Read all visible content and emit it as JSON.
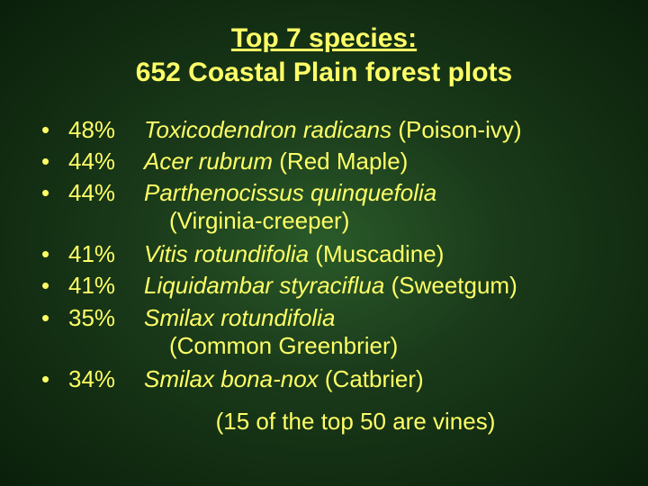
{
  "colors": {
    "text": "#ffff66",
    "bg_inner": "#2a5a2a",
    "bg_mid": "#1a3a1a",
    "bg_outer": "#0a1f0a"
  },
  "typography": {
    "font_family": "Comic Sans MS",
    "title_fontsize": 30,
    "body_fontsize": 26,
    "title_weight": "bold"
  },
  "title": {
    "line1": "Top 7 species:",
    "line2": "652 Coastal Plain forest plots"
  },
  "items": [
    {
      "bullet": "•",
      "pct": "48%",
      "sci": "Toxicodendron radicans",
      "common": " (Poison-ivy)"
    },
    {
      "bullet": "•",
      "pct": "44%",
      "sci": "Acer rubrum",
      "common": " (Red Maple)"
    },
    {
      "bullet": "•",
      "pct": "44%",
      "sci": "Parthenocissus quinquefolia",
      "common": "",
      "sub": "(Virginia-creeper)"
    },
    {
      "bullet": "•",
      "pct": "41%",
      "sci": "Vitis rotundifolia",
      "common": " (Muscadine)"
    },
    {
      "bullet": "•",
      "pct": "41%",
      "sci": "Liquidambar styraciflua",
      "common": " (Sweetgum)"
    },
    {
      "bullet": "•",
      "pct": "35%",
      "sci": "Smilax rotundifolia",
      "common": "",
      "sub": "(Common Greenbrier)"
    },
    {
      "bullet": "•",
      "pct": "34%",
      "sci": "Smilax bona-nox",
      "common": " (Catbrier)"
    }
  ],
  "footnote": "(15 of the top 50 are vines)"
}
